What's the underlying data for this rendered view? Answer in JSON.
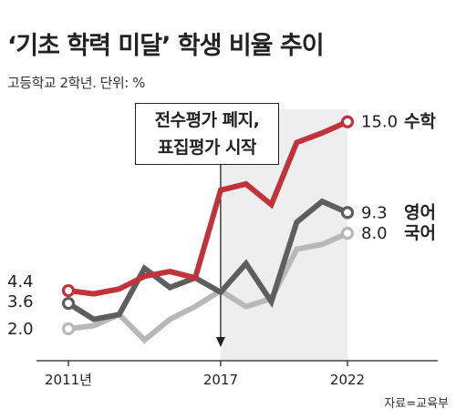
{
  "header": {
    "title": "‘기초 학력 미달’ 학생 비율 추이",
    "subtitle": "고등학교 2학년. 단위: %"
  },
  "annotation": {
    "line1": "전수평가 폐지,",
    "line2": "표집평가 시작"
  },
  "source": "자료=교육부",
  "chart_data": {
    "type": "line",
    "x": [
      2011,
      2012,
      2013,
      2014,
      2015,
      2016,
      2017,
      2018,
      2019,
      2020,
      2021,
      2022
    ],
    "tick_labels": [
      "2011년",
      "2017",
      "2022"
    ],
    "tick_positions": [
      2011,
      2017,
      2022
    ],
    "xlabel": "",
    "ylabel": "",
    "ylim": [
      0,
      17.5
    ],
    "grid": false,
    "shaded_region": [
      2017,
      2022
    ],
    "event_line_x": 2017,
    "series": [
      {
        "name": "수학",
        "color": "#c0333a",
        "values": [
          4.4,
          4.2,
          4.5,
          5.3,
          5.6,
          5.2,
          10.7,
          11.1,
          9.8,
          13.7,
          14.3,
          15.0
        ],
        "start_label": "4.4",
        "end_label": "15.0"
      },
      {
        "name": "영어",
        "color": "#5e5e5e",
        "values": [
          3.6,
          2.6,
          2.9,
          5.8,
          4.6,
          5.2,
          4.3,
          6.1,
          3.7,
          8.7,
          10.0,
          9.3
        ],
        "start_label": "3.6",
        "end_label": "9.3"
      },
      {
        "name": "국어",
        "color": "#b8b8b8",
        "values": [
          2.0,
          2.2,
          2.9,
          1.3,
          2.6,
          3.4,
          4.4,
          3.4,
          3.9,
          7.0,
          7.3,
          8.0
        ],
        "start_label": "2.0",
        "end_label": "8.0"
      }
    ]
  }
}
